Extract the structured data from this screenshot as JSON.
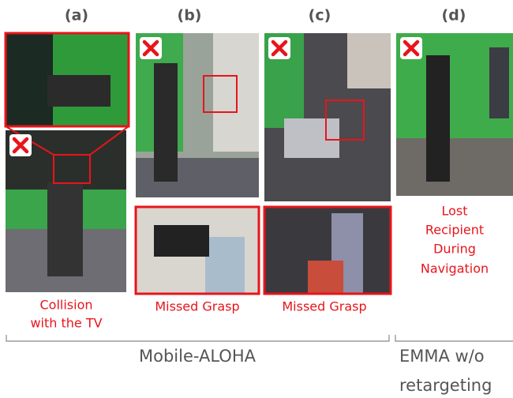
{
  "panels": [
    {
      "label": "(a)",
      "caption": [
        "Collision",
        "with the TV"
      ]
    },
    {
      "label": "(b)",
      "caption": [
        "Missed Grasp"
      ]
    },
    {
      "label": "(c)",
      "caption": [
        "Missed Grasp"
      ]
    },
    {
      "label": "(d)",
      "caption": [
        "Lost",
        "Recipient",
        "During",
        "Navigation"
      ]
    }
  ],
  "groups": [
    {
      "label": [
        "Mobile-ALOHA"
      ]
    },
    {
      "label": [
        "EMMA w/o",
        "retargeting"
      ]
    }
  ]
}
